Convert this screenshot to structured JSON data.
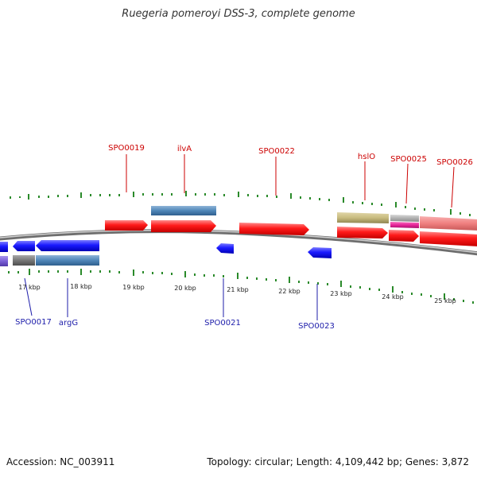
{
  "title": "Ruegeria pomeroyi DSS-3, complete genome",
  "footer": {
    "accession": "Accession: NC_003911",
    "summary": "Topology: circular; Length: 4,109,442 bp; Genes: 3,872"
  },
  "colors": {
    "forward": "#ff1a1a",
    "reverse": "#1a1aff",
    "steelblue": "#4f86b8",
    "khaki": "#c8bb7e",
    "magenta": "#e8259a",
    "pink": "#f08080",
    "gray": "#777777",
    "silver": "#b0b0b0",
    "purple": "#7a5fd6",
    "tick": "#2a8a2a",
    "backbone": "#8a8a8a",
    "label_top": "#cc0000",
    "label_bottom": "#1c1caa"
  },
  "scale_labels": [
    "17 kbp",
    "18 kbp",
    "19 kbp",
    "20 kbp",
    "21 kbp",
    "22 kbp",
    "23 kbp",
    "24 kbp",
    "25 kbp"
  ],
  "gene_labels_top": [
    "SPO0019",
    "ilvA",
    "SPO0022",
    "hslO",
    "SPO0025",
    "SPO0026"
  ],
  "gene_labels_bottom": [
    "SPO0017",
    "argG",
    "SPO0021",
    "SPO0023"
  ]
}
